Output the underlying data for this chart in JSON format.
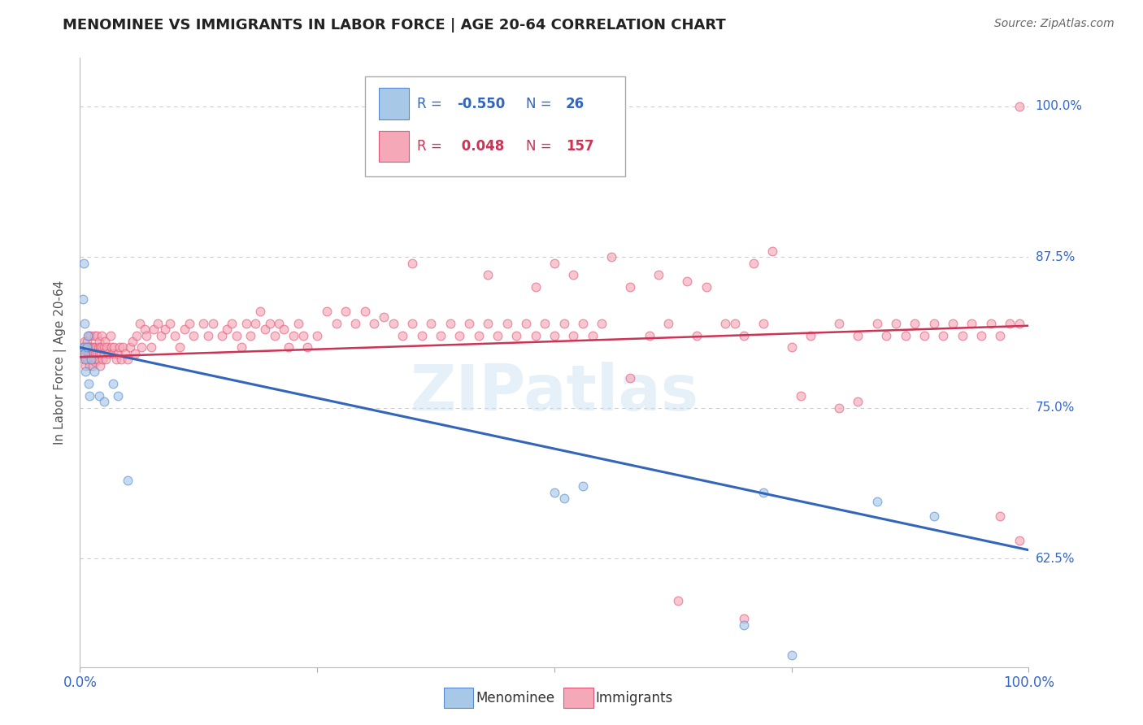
{
  "title": "MENOMINEE VS IMMIGRANTS IN LABOR FORCE | AGE 20-64 CORRELATION CHART",
  "source": "Source: ZipAtlas.com",
  "ylabel": "In Labor Force | Age 20-64",
  "ytick_labels": [
    "100.0%",
    "87.5%",
    "75.0%",
    "62.5%"
  ],
  "ytick_values": [
    1.0,
    0.875,
    0.75,
    0.625
  ],
  "xlim": [
    0.0,
    1.0
  ],
  "ylim": [
    0.535,
    1.04
  ],
  "watermark": "ZIPatlas",
  "menominee_color": "#a8c8e8",
  "immigrants_color": "#f4a8b8",
  "menominee_edge_color": "#5588cc",
  "immigrants_edge_color": "#e05878",
  "menominee_line_color": "#3366bb",
  "immigrants_line_color": "#cc3355",
  "menominee_line": [
    0.0,
    0.8,
    1.0,
    0.632
  ],
  "immigrants_line": [
    0.0,
    0.792,
    1.0,
    0.818
  ],
  "background_color": "#ffffff",
  "grid_color": "#cccccc",
  "title_color": "#222222",
  "axis_label_color": "#3366cc",
  "marker_size": 60,
  "marker_alpha": 0.65,
  "marker_linewidth": 0.8,
  "menominee_pts": [
    [
      0.003,
      0.84
    ],
    [
      0.004,
      0.87
    ],
    [
      0.004,
      0.8
    ],
    [
      0.005,
      0.82
    ],
    [
      0.005,
      0.795
    ],
    [
      0.006,
      0.79
    ],
    [
      0.006,
      0.78
    ],
    [
      0.007,
      0.8
    ],
    [
      0.008,
      0.81
    ],
    [
      0.009,
      0.77
    ],
    [
      0.01,
      0.76
    ],
    [
      0.012,
      0.79
    ],
    [
      0.015,
      0.78
    ],
    [
      0.02,
      0.76
    ],
    [
      0.025,
      0.755
    ],
    [
      0.035,
      0.77
    ],
    [
      0.04,
      0.76
    ],
    [
      0.05,
      0.69
    ],
    [
      0.5,
      0.68
    ],
    [
      0.51,
      0.675
    ],
    [
      0.53,
      0.685
    ],
    [
      0.72,
      0.68
    ],
    [
      0.84,
      0.672
    ],
    [
      0.9,
      0.66
    ],
    [
      0.7,
      0.57
    ],
    [
      0.75,
      0.545
    ]
  ],
  "immigrants_pts": [
    [
      0.003,
      0.8
    ],
    [
      0.004,
      0.795
    ],
    [
      0.004,
      0.79
    ],
    [
      0.005,
      0.805
    ],
    [
      0.005,
      0.798
    ],
    [
      0.005,
      0.792
    ],
    [
      0.006,
      0.8
    ],
    [
      0.006,
      0.785
    ],
    [
      0.007,
      0.79
    ],
    [
      0.007,
      0.805
    ],
    [
      0.008,
      0.8
    ],
    [
      0.008,
      0.795
    ],
    [
      0.009,
      0.79
    ],
    [
      0.009,
      0.81
    ],
    [
      0.01,
      0.8
    ],
    [
      0.01,
      0.795
    ],
    [
      0.01,
      0.785
    ],
    [
      0.011,
      0.8
    ],
    [
      0.011,
      0.81
    ],
    [
      0.012,
      0.795
    ],
    [
      0.012,
      0.79
    ],
    [
      0.013,
      0.8
    ],
    [
      0.013,
      0.785
    ],
    [
      0.014,
      0.795
    ],
    [
      0.014,
      0.79
    ],
    [
      0.015,
      0.8
    ],
    [
      0.015,
      0.81
    ],
    [
      0.016,
      0.795
    ],
    [
      0.016,
      0.788
    ],
    [
      0.017,
      0.8
    ],
    [
      0.017,
      0.79
    ],
    [
      0.018,
      0.81
    ],
    [
      0.018,
      0.795
    ],
    [
      0.019,
      0.8
    ],
    [
      0.019,
      0.79
    ],
    [
      0.02,
      0.795
    ],
    [
      0.02,
      0.805
    ],
    [
      0.021,
      0.8
    ],
    [
      0.021,
      0.785
    ],
    [
      0.022,
      0.795
    ],
    [
      0.023,
      0.81
    ],
    [
      0.023,
      0.8
    ],
    [
      0.024,
      0.79
    ],
    [
      0.025,
      0.8
    ],
    [
      0.025,
      0.795
    ],
    [
      0.026,
      0.805
    ],
    [
      0.027,
      0.79
    ],
    [
      0.028,
      0.8
    ],
    [
      0.03,
      0.795
    ],
    [
      0.032,
      0.81
    ],
    [
      0.033,
      0.8
    ],
    [
      0.035,
      0.795
    ],
    [
      0.036,
      0.8
    ],
    [
      0.038,
      0.79
    ],
    [
      0.04,
      0.795
    ],
    [
      0.042,
      0.8
    ],
    [
      0.043,
      0.79
    ],
    [
      0.045,
      0.8
    ],
    [
      0.048,
      0.795
    ],
    [
      0.05,
      0.79
    ],
    [
      0.053,
      0.8
    ],
    [
      0.055,
      0.805
    ],
    [
      0.058,
      0.795
    ],
    [
      0.06,
      0.81
    ],
    [
      0.063,
      0.82
    ],
    [
      0.065,
      0.8
    ],
    [
      0.068,
      0.815
    ],
    [
      0.07,
      0.81
    ],
    [
      0.075,
      0.8
    ],
    [
      0.078,
      0.815
    ],
    [
      0.082,
      0.82
    ],
    [
      0.085,
      0.81
    ],
    [
      0.09,
      0.815
    ],
    [
      0.095,
      0.82
    ],
    [
      0.1,
      0.81
    ],
    [
      0.105,
      0.8
    ],
    [
      0.11,
      0.815
    ],
    [
      0.115,
      0.82
    ],
    [
      0.12,
      0.81
    ],
    [
      0.13,
      0.82
    ],
    [
      0.135,
      0.81
    ],
    [
      0.14,
      0.82
    ],
    [
      0.15,
      0.81
    ],
    [
      0.155,
      0.815
    ],
    [
      0.16,
      0.82
    ],
    [
      0.165,
      0.81
    ],
    [
      0.17,
      0.8
    ],
    [
      0.175,
      0.82
    ],
    [
      0.18,
      0.81
    ],
    [
      0.185,
      0.82
    ],
    [
      0.19,
      0.83
    ],
    [
      0.195,
      0.815
    ],
    [
      0.2,
      0.82
    ],
    [
      0.205,
      0.81
    ],
    [
      0.21,
      0.82
    ],
    [
      0.215,
      0.815
    ],
    [
      0.22,
      0.8
    ],
    [
      0.225,
      0.81
    ],
    [
      0.23,
      0.82
    ],
    [
      0.235,
      0.81
    ],
    [
      0.24,
      0.8
    ],
    [
      0.25,
      0.81
    ],
    [
      0.26,
      0.83
    ],
    [
      0.27,
      0.82
    ],
    [
      0.28,
      0.83
    ],
    [
      0.29,
      0.82
    ],
    [
      0.3,
      0.83
    ],
    [
      0.31,
      0.82
    ],
    [
      0.32,
      0.825
    ],
    [
      0.33,
      0.82
    ],
    [
      0.34,
      0.81
    ],
    [
      0.35,
      0.82
    ],
    [
      0.36,
      0.81
    ],
    [
      0.37,
      0.82
    ],
    [
      0.38,
      0.81
    ],
    [
      0.39,
      0.82
    ],
    [
      0.4,
      0.81
    ],
    [
      0.41,
      0.82
    ],
    [
      0.42,
      0.81
    ],
    [
      0.43,
      0.82
    ],
    [
      0.44,
      0.81
    ],
    [
      0.45,
      0.82
    ],
    [
      0.46,
      0.81
    ],
    [
      0.47,
      0.82
    ],
    [
      0.48,
      0.81
    ],
    [
      0.49,
      0.82
    ],
    [
      0.5,
      0.81
    ],
    [
      0.51,
      0.82
    ],
    [
      0.52,
      0.81
    ],
    [
      0.53,
      0.82
    ],
    [
      0.54,
      0.81
    ],
    [
      0.55,
      0.82
    ],
    [
      0.6,
      0.81
    ],
    [
      0.62,
      0.82
    ],
    [
      0.65,
      0.81
    ],
    [
      0.68,
      0.82
    ],
    [
      0.7,
      0.81
    ],
    [
      0.72,
      0.82
    ],
    [
      0.75,
      0.8
    ],
    [
      0.77,
      0.81
    ],
    [
      0.8,
      0.82
    ],
    [
      0.82,
      0.81
    ],
    [
      0.84,
      0.82
    ],
    [
      0.85,
      0.81
    ],
    [
      0.86,
      0.82
    ],
    [
      0.87,
      0.81
    ],
    [
      0.88,
      0.82
    ],
    [
      0.89,
      0.81
    ],
    [
      0.9,
      0.82
    ],
    [
      0.91,
      0.81
    ],
    [
      0.92,
      0.82
    ],
    [
      0.93,
      0.81
    ],
    [
      0.94,
      0.82
    ],
    [
      0.95,
      0.81
    ],
    [
      0.96,
      0.82
    ],
    [
      0.97,
      0.81
    ],
    [
      0.98,
      0.82
    ],
    [
      0.99,
      0.82
    ],
    [
      0.56,
      0.875
    ],
    [
      0.73,
      0.88
    ],
    [
      0.58,
      0.85
    ],
    [
      0.61,
      0.86
    ],
    [
      0.64,
      0.855
    ],
    [
      0.66,
      0.85
    ],
    [
      0.69,
      0.82
    ],
    [
      0.71,
      0.87
    ],
    [
      0.48,
      0.85
    ],
    [
      0.5,
      0.87
    ],
    [
      0.52,
      0.86
    ],
    [
      0.35,
      0.87
    ],
    [
      0.43,
      0.86
    ],
    [
      0.99,
      1.0
    ],
    [
      0.58,
      0.775
    ],
    [
      0.76,
      0.76
    ],
    [
      0.8,
      0.75
    ],
    [
      0.82,
      0.755
    ],
    [
      0.97,
      0.66
    ],
    [
      0.99,
      0.64
    ],
    [
      0.63,
      0.59
    ],
    [
      0.7,
      0.575
    ]
  ]
}
